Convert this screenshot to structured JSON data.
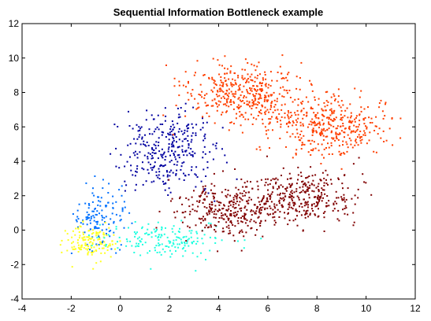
{
  "chart_data": {
    "type": "scatter",
    "title": "Sequential Information Bottleneck example",
    "xlabel": "",
    "ylabel": "",
    "xlim": [
      -4,
      12
    ],
    "ylim": [
      -4,
      12
    ],
    "xticks": [
      "-4",
      "-2",
      "0",
      "2",
      "4",
      "6",
      "8",
      "10",
      "12"
    ],
    "yticks": [
      "-4",
      "-2",
      "0",
      "2",
      "4",
      "6",
      "8",
      "10",
      "12"
    ],
    "grid": false,
    "legend": "none",
    "clusters": [
      {
        "color": "#0000a0",
        "center": [
          2.0,
          4.5
        ],
        "spread": [
          0.95,
          1.25
        ],
        "n": 320,
        "seed": 11,
        "hint": "dark blue"
      },
      {
        "color": "#0070ff",
        "center": [
          -0.8,
          0.7
        ],
        "spread": [
          0.55,
          0.9
        ],
        "n": 130,
        "seed": 22,
        "hint": "blue"
      },
      {
        "color": "#ffff20",
        "center": [
          -1.2,
          -0.8
        ],
        "spread": [
          0.45,
          0.5
        ],
        "n": 140,
        "seed": 33,
        "hint": "yellow"
      },
      {
        "color": "#20ffe0",
        "center": [
          1.8,
          -0.6
        ],
        "spread": [
          1.2,
          0.55
        ],
        "n": 170,
        "seed": 44,
        "hint": "cyan"
      },
      {
        "color": "#800000",
        "center": [
          4.5,
          1.2
        ],
        "spread": [
          1.1,
          0.75
        ],
        "n": 320,
        "seed": 55,
        "hint": "dark red west"
      },
      {
        "color": "#800000",
        "center": [
          7.4,
          2.0
        ],
        "spread": [
          1.05,
          0.8
        ],
        "n": 330,
        "seed": 66,
        "hint": "dark red east"
      },
      {
        "color": "#ff4000",
        "center": [
          5.0,
          7.9
        ],
        "spread": [
          1.2,
          0.9
        ],
        "n": 420,
        "seed": 77,
        "hint": "orange north"
      },
      {
        "color": "#ff4000",
        "center": [
          8.5,
          6.0
        ],
        "spread": [
          1.1,
          0.85
        ],
        "n": 380,
        "seed": 88,
        "hint": "orange east"
      }
    ]
  }
}
